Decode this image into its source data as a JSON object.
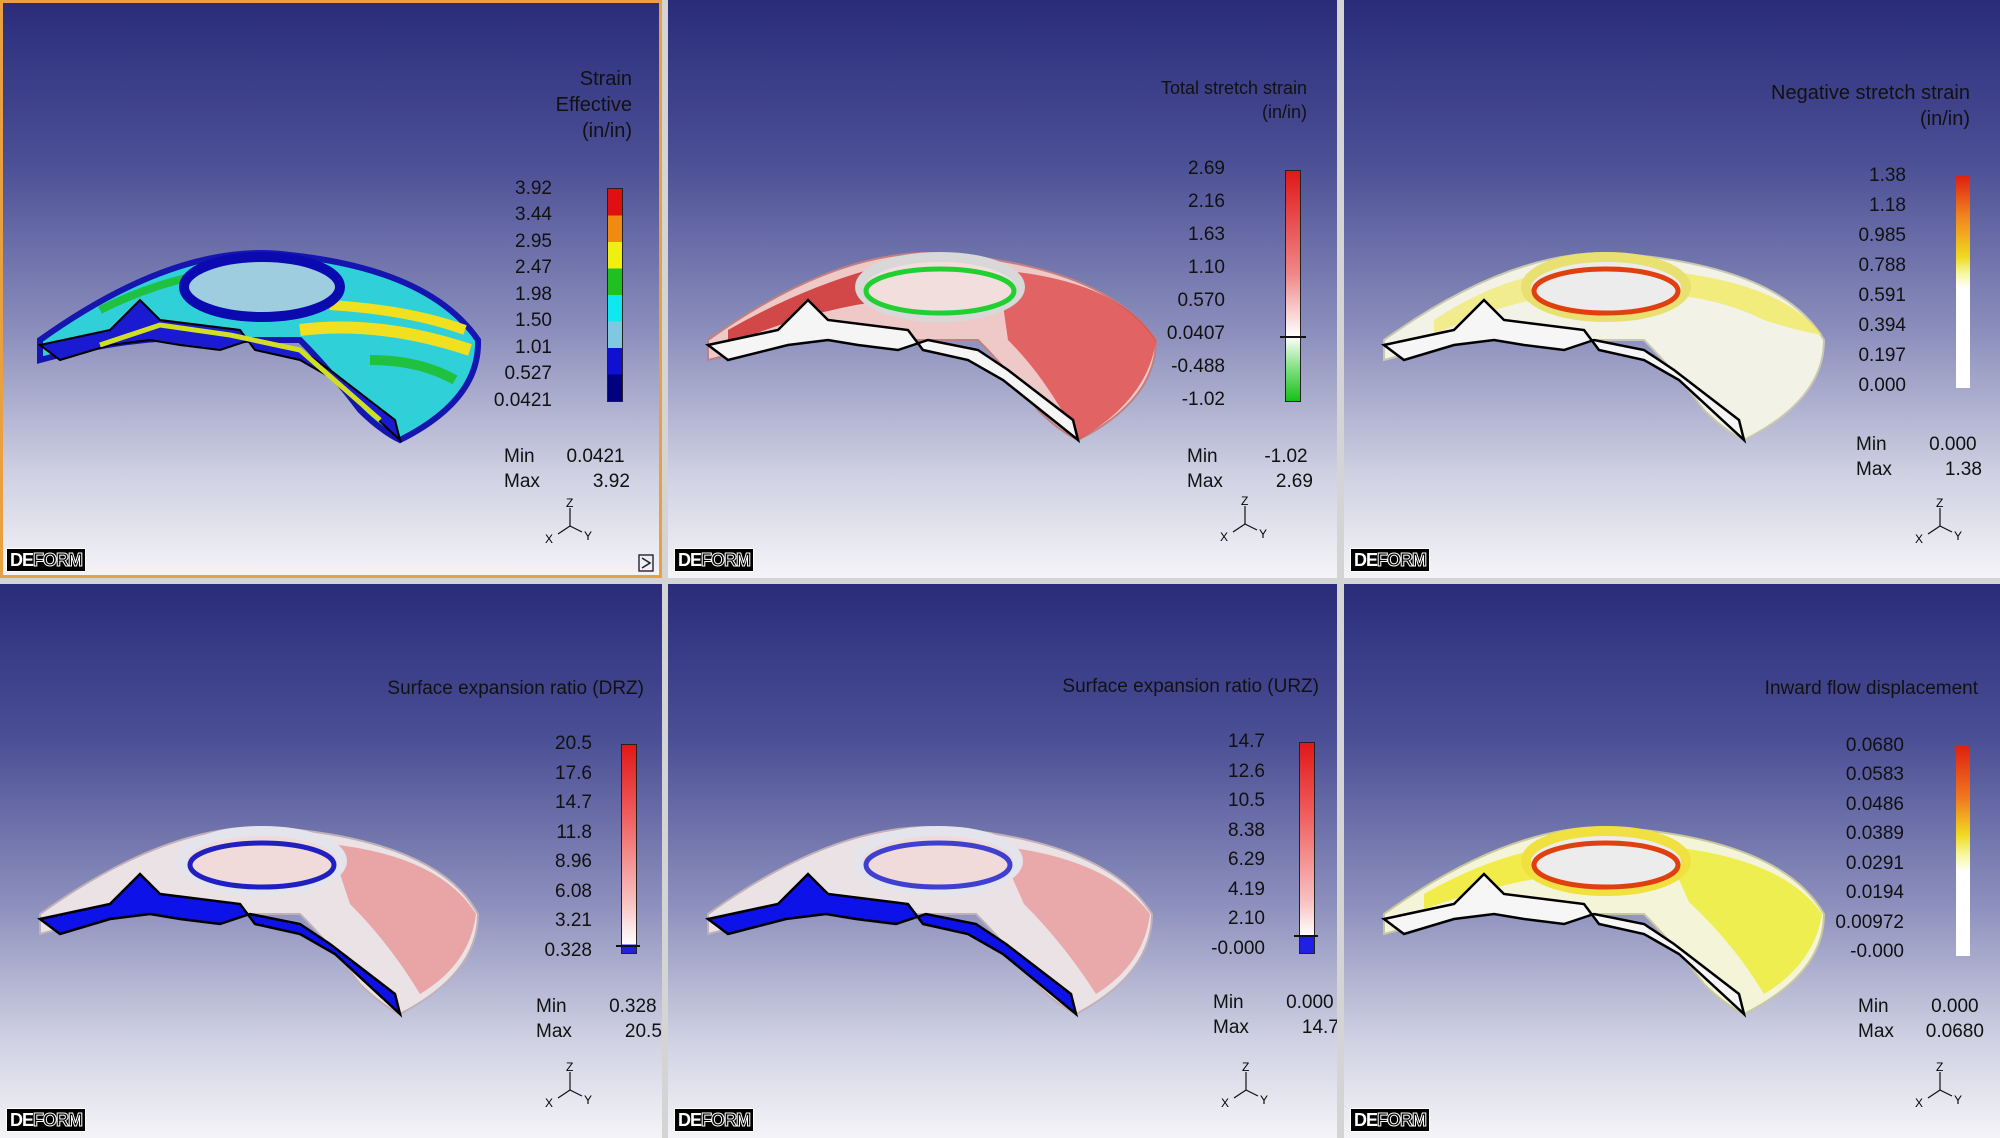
{
  "panels": [
    {
      "title": [
        "Strain",
        "Effective",
        "(in/in)"
      ],
      "ticks": [
        "3.92",
        "3.44",
        "2.95",
        "2.47",
        "1.98",
        "1.50",
        "1.01",
        "0.527",
        "0.0421"
      ],
      "min_label": "Min",
      "min": "0.0421",
      "max_label": "Max",
      "max": "3.92",
      "logo": [
        "DE",
        "FORM"
      ],
      "colormap": "rainbow"
    },
    {
      "title": [
        "Total stretch strain",
        "(in/in)"
      ],
      "ticks": [
        "2.69",
        "2.16",
        "1.63",
        "1.10",
        "0.570",
        "0.0407",
        "-0.488",
        "-1.02"
      ],
      "min_label": "Min",
      "min": "-1.02",
      "max_label": "Max",
      "max": "2.69",
      "logo": [
        "DE",
        "FORM"
      ],
      "colormap": "red-white-green"
    },
    {
      "title": [
        "Negative stretch strain",
        "(in/in)"
      ],
      "ticks": [
        "1.38",
        "1.18",
        "0.985",
        "0.788",
        "0.591",
        "0.394",
        "0.197",
        "0.000"
      ],
      "min_label": "Min",
      "min": "0.000",
      "max_label": "Max",
      "max": "1.38",
      "logo": [
        "DE",
        "FORM"
      ],
      "colormap": "red-yellow-white"
    },
    {
      "title": [
        "Surface expansion ratio (DRZ)"
      ],
      "ticks": [
        "20.5",
        "17.6",
        "14.7",
        "11.8",
        "8.96",
        "6.08",
        "3.21",
        "0.328"
      ],
      "min_label": "Min",
      "min": "0.328",
      "max_label": "Max",
      "max": "20.5",
      "logo": [
        "DE",
        "FORM"
      ],
      "colormap": "red-white-blue"
    },
    {
      "title": [
        "Surface expansion ratio (URZ)"
      ],
      "ticks": [
        "14.7",
        "12.6",
        "10.5",
        "8.38",
        "6.29",
        "4.19",
        "2.10",
        "-0.000"
      ],
      "min_label": "Min",
      "min": "0.000",
      "max_label": "Max",
      "max": "14.7",
      "logo": [
        "DE",
        "FORM"
      ],
      "colormap": "red-white-blue"
    },
    {
      "title": [
        "Inward flow displacement"
      ],
      "ticks": [
        "0.0680",
        "0.0583",
        "0.0486",
        "0.0389",
        "0.0291",
        "0.0194",
        "0.00972",
        "-0.000"
      ],
      "min_label": "Min",
      "min": "0.000",
      "max_label": "Max",
      "max": "0.0680",
      "logo": [
        "DE",
        "FORM"
      ],
      "colormap": "red-yellow-white"
    }
  ],
  "axis_labels": {
    "z": "Z",
    "x": "X",
    "y": "Y"
  },
  "colors": {
    "background_top": "#2a2c7a",
    "background_bottom": "#f4f4f8",
    "active_border": "#e8a040"
  }
}
